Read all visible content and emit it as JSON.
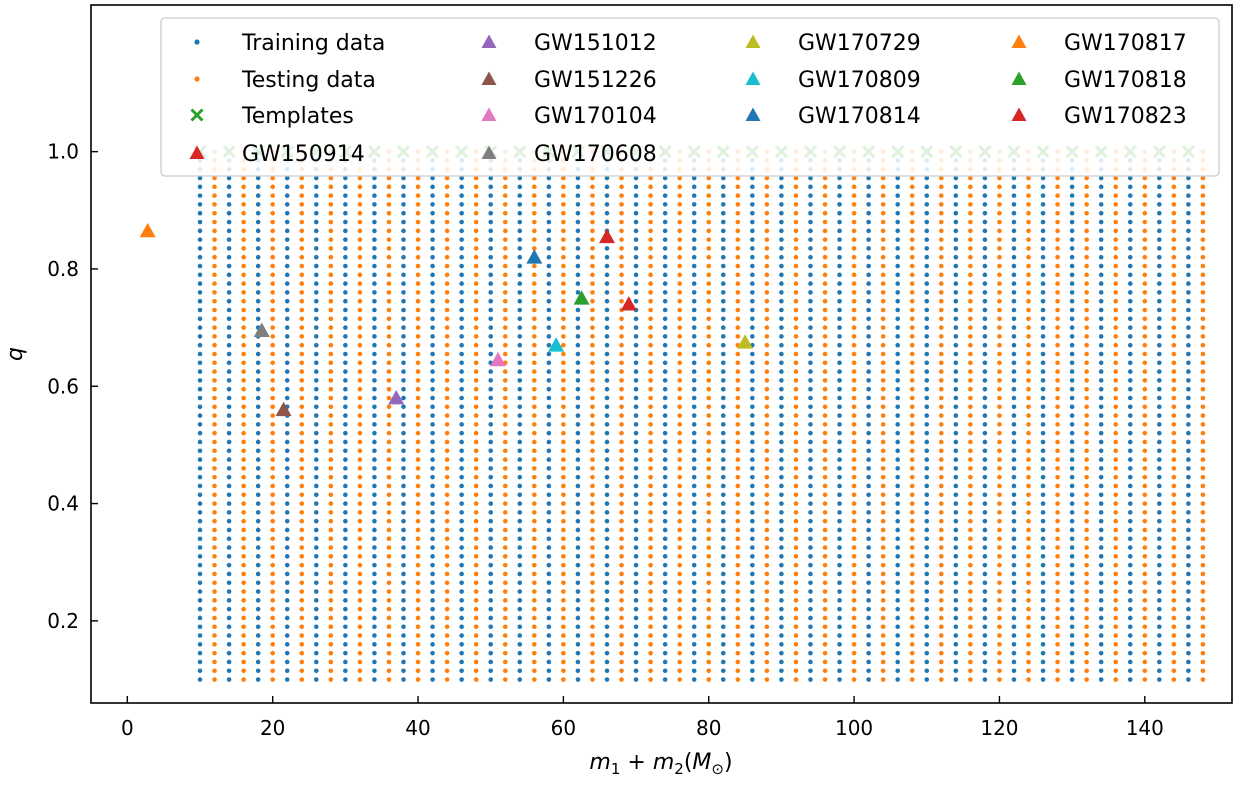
{
  "chart_data": {
    "type": "scatter",
    "title": "",
    "xlabel_parts": {
      "m1": "m",
      "sub1": "1",
      "plus": " + ",
      "m2": "m",
      "sub2": "2",
      "open": "(",
      "M": "M",
      "sun": "⊙",
      "close": ")"
    },
    "ylabel": "q",
    "xlim": [
      -5,
      152
    ],
    "ylim": [
      0.06,
      1.25
    ],
    "xticks": [
      0,
      20,
      40,
      60,
      80,
      100,
      120,
      140
    ],
    "xtick_labels": [
      "0",
      "20",
      "40",
      "60",
      "80",
      "100",
      "120",
      "140"
    ],
    "yticks": [
      0.2,
      0.4,
      0.6,
      0.8,
      1.0
    ],
    "ytick_labels": [
      "0.2",
      "0.4",
      "0.6",
      "0.8",
      "1.0"
    ],
    "grid": false,
    "legend_placement": "top",
    "grid_data": {
      "training": {
        "name": "Training data",
        "color": "#1f77b4",
        "x_start": 10,
        "x_end": 146,
        "x_step": 4,
        "q_start": 0.1,
        "q_end": 1.0,
        "q_step": 0.015
      },
      "testing": {
        "name": "Testing data",
        "color": "#ff7f0e",
        "x_start": 12,
        "x_end": 148,
        "x_step": 4,
        "q_start": 0.1,
        "q_end": 1.0,
        "q_step": 0.015
      },
      "templates": {
        "name": "Templates",
        "color": "#2ca02c",
        "x_start": 10,
        "x_end": 146,
        "x_step": 4,
        "q": 1.0
      }
    },
    "events": [
      {
        "name": "GW150914",
        "x": 69,
        "y": 0.74,
        "color": "#d62728"
      },
      {
        "name": "GW151012",
        "x": 37,
        "y": 0.58,
        "color": "#9467bd"
      },
      {
        "name": "GW151226",
        "x": 21.5,
        "y": 0.56,
        "color": "#8c564b"
      },
      {
        "name": "GW170104",
        "x": 51,
        "y": 0.645,
        "color": "#e377c2"
      },
      {
        "name": "GW170608",
        "x": 18.5,
        "y": 0.695,
        "color": "#7f7f7f"
      },
      {
        "name": "GW170729",
        "x": 85,
        "y": 0.675,
        "color": "#bcbd22"
      },
      {
        "name": "GW170809",
        "x": 59,
        "y": 0.67,
        "color": "#17becf"
      },
      {
        "name": "GW170814",
        "x": 56,
        "y": 0.82,
        "color": "#1f77b4"
      },
      {
        "name": "GW170817",
        "x": 2.8,
        "y": 0.865,
        "color": "#ff7f0e"
      },
      {
        "name": "GW170818",
        "x": 62.5,
        "y": 0.75,
        "color": "#2ca02c"
      },
      {
        "name": "GW170823",
        "x": 66,
        "y": 0.855,
        "color": "#d62728"
      }
    ],
    "legend": {
      "columns": [
        [
          "Training data",
          "Testing data",
          "Templates",
          "GW150914"
        ],
        [
          "GW151012",
          "GW151226",
          "GW170104",
          "GW170608"
        ],
        [
          "GW170729",
          "GW170809",
          "GW170814"
        ],
        [
          "GW170817",
          "GW170818",
          "GW170823"
        ]
      ]
    }
  }
}
